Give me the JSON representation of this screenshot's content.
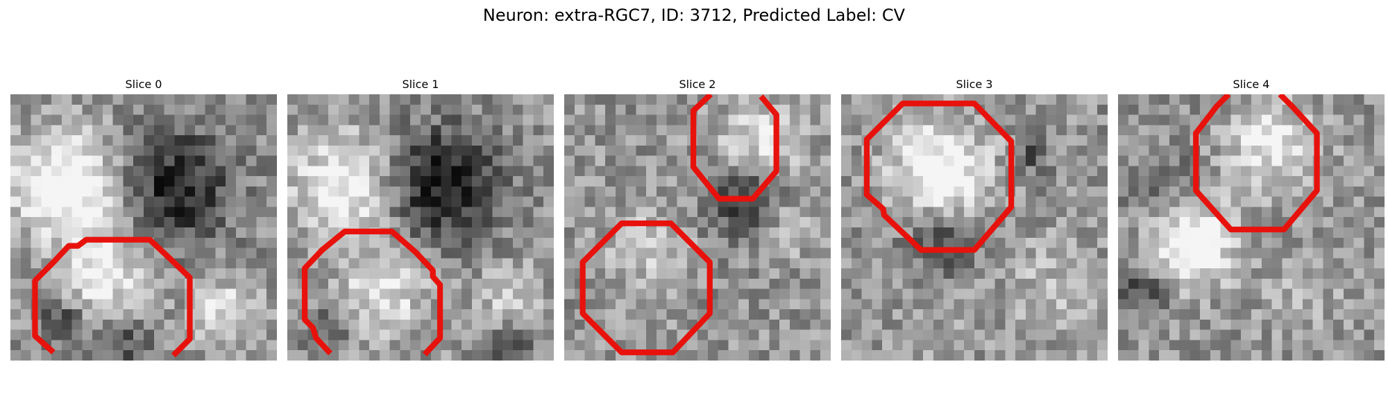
{
  "figure": {
    "title": "Neuron: extra-RGC7, ID: 3712, Predicted Label: CV",
    "contour_color": "#e8120c"
  },
  "slices": [
    {
      "title": "Slice 0",
      "seed": 11,
      "blobs": [
        [
          2.8,
          4.5,
          3.2,
          0.55
        ],
        [
          8.0,
          4.5,
          3.6,
          -0.45
        ],
        [
          4.5,
          9.0,
          2.8,
          0.35
        ],
        [
          2.5,
          11.0,
          1.4,
          -0.35
        ],
        [
          5.5,
          12.0,
          1.8,
          -0.3
        ],
        [
          10.5,
          10.5,
          2.0,
          0.3
        ]
      ]
    },
    {
      "title": "Slice 1",
      "seed": 23,
      "blobs": [
        [
          2.8,
          4.5,
          3.1,
          0.45
        ],
        [
          7.5,
          4.4,
          3.5,
          -0.5
        ],
        [
          4.8,
          9.5,
          2.8,
          0.3
        ],
        [
          2.0,
          11.5,
          1.3,
          -0.25
        ],
        [
          11.0,
          12.5,
          1.2,
          -0.35
        ],
        [
          10.8,
          9.8,
          1.8,
          0.25
        ]
      ]
    },
    {
      "title": "Slice 2",
      "seed": 37,
      "blobs": [
        [
          9.5,
          2.5,
          2.7,
          0.3
        ],
        [
          8.8,
          5.2,
          2.2,
          -0.45
        ],
        [
          4.0,
          7.5,
          2.5,
          0.2
        ],
        [
          4.0,
          11.0,
          2.3,
          0.05
        ],
        [
          11.0,
          6.5,
          1.6,
          0.2
        ]
      ]
    },
    {
      "title": "Slice 3",
      "seed": 51,
      "blobs": [
        [
          4.8,
          3.8,
          3.0,
          0.5
        ],
        [
          4.8,
          7.0,
          2.0,
          -0.35
        ],
        [
          9.2,
          3.0,
          1.2,
          -0.25
        ],
        [
          10.5,
          9.5,
          3.0,
          0.15
        ],
        [
          4.5,
          11.5,
          2.5,
          0.05
        ]
      ]
    },
    {
      "title": "Slice 4",
      "seed": 67,
      "blobs": [
        [
          7.5,
          2.5,
          2.7,
          0.35
        ],
        [
          2.3,
          4.5,
          2.2,
          -0.2
        ],
        [
          3.6,
          7.2,
          2.5,
          0.55
        ],
        [
          1.2,
          9.6,
          1.4,
          -0.3
        ],
        [
          9.0,
          9.5,
          2.8,
          0.1
        ]
      ]
    }
  ]
}
